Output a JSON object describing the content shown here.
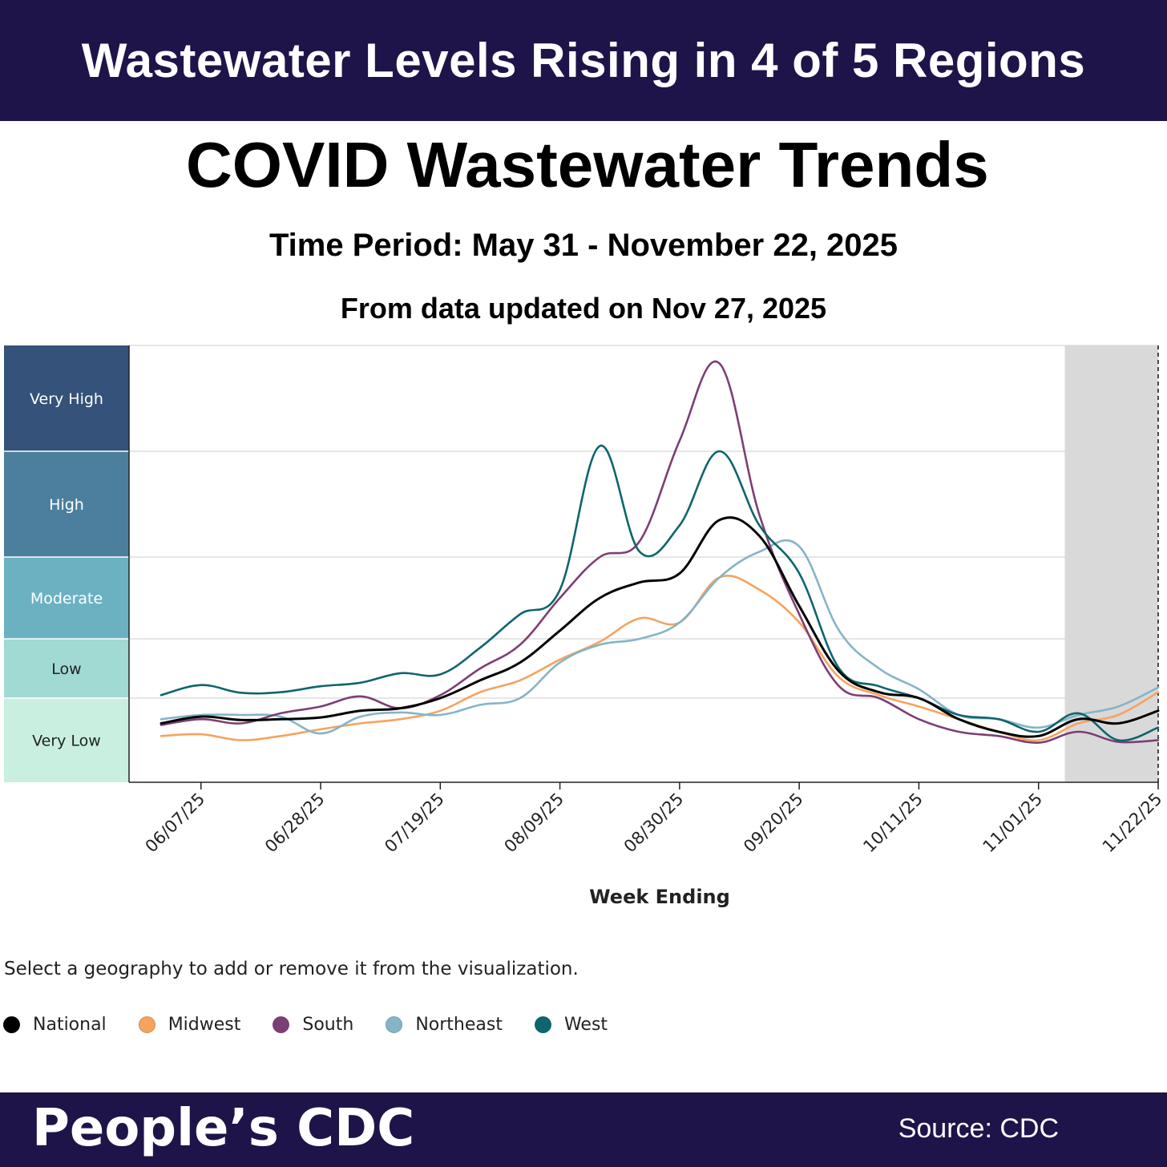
{
  "banner": {
    "headline": "Wastewater Levels Rising in 4 of 5 Regions"
  },
  "header": {
    "title": "COVID Wastewater Trends",
    "period": "Time Period: May 31 - November 22, 2025",
    "updated": "From data updated on Nov 27, 2025"
  },
  "instruction": "Select a geography to add or remove it from the visualization.",
  "footer": {
    "brand": "People’s CDC",
    "source": "Source: CDC"
  },
  "colors": {
    "National": "#000000",
    "Midwest": "#f5a35f",
    "South": "#7c3f74",
    "Northeast": "#85b4c7",
    "West": "#0f656d",
    "shade": "#d9d9d9"
  },
  "chart_data": {
    "type": "line",
    "xlabel": "Week Ending",
    "ylabel": "",
    "x_ticks": [
      "06/07/25",
      "06/28/25",
      "07/19/25",
      "08/09/25",
      "08/30/25",
      "09/20/25",
      "10/11/25",
      "11/01/25",
      "11/22/25"
    ],
    "x": [
      "05/31/25",
      "06/07/25",
      "06/14/25",
      "06/21/25",
      "06/28/25",
      "07/05/25",
      "07/12/25",
      "07/19/25",
      "07/26/25",
      "08/02/25",
      "08/09/25",
      "08/16/25",
      "08/23/25",
      "08/30/25",
      "09/06/25",
      "09/13/25",
      "09/20/25",
      "09/27/25",
      "10/04/25",
      "10/11/25",
      "10/18/25",
      "10/25/25",
      "11/01/25",
      "11/08/25",
      "11/15/25",
      "11/22/25"
    ],
    "levels": [
      {
        "label": "Very High",
        "range": [
          4,
          5
        ],
        "color": "#34527a"
      },
      {
        "label": "High",
        "range": [
          3,
          4
        ],
        "color": "#4c7f9e"
      },
      {
        "label": "Moderate",
        "range": [
          2,
          3
        ],
        "color": "#6bb1c1"
      },
      {
        "label": "Low",
        "range": [
          1,
          2
        ],
        "color": "#a1dad2"
      },
      {
        "label": "Very Low",
        "range": [
          0,
          1
        ],
        "color": "#c8efdf"
      }
    ],
    "series": [
      {
        "name": "National",
        "values": [
          0.7,
          0.78,
          0.74,
          0.75,
          0.77,
          0.85,
          0.88,
          1.0,
          1.3,
          1.6,
          2.1,
          2.5,
          2.69,
          2.8,
          3.35,
          3.2,
          2.4,
          1.45,
          1.1,
          1.0,
          0.75,
          0.6,
          0.55,
          0.75,
          0.7,
          0.85
        ]
      },
      {
        "name": "Midwest",
        "values": [
          0.55,
          0.57,
          0.5,
          0.55,
          0.63,
          0.7,
          0.75,
          0.85,
          1.1,
          1.3,
          1.65,
          1.95,
          2.25,
          2.2,
          2.75,
          2.6,
          2.2,
          1.35,
          1.05,
          0.9,
          0.75,
          0.6,
          0.5,
          0.7,
          0.8,
          1.1
        ]
      },
      {
        "name": "South",
        "values": [
          0.68,
          0.75,
          0.7,
          0.82,
          0.9,
          1.03,
          0.88,
          1.05,
          1.5,
          1.9,
          2.5,
          3.0,
          3.15,
          4.1,
          4.83,
          3.4,
          2.3,
          1.2,
          1.0,
          0.75,
          0.6,
          0.55,
          0.47,
          0.6,
          0.48,
          0.5
        ]
      },
      {
        "name": "Northeast",
        "values": [
          0.75,
          0.8,
          0.8,
          0.78,
          0.58,
          0.78,
          0.83,
          0.8,
          0.92,
          1.0,
          1.6,
          1.9,
          2.0,
          2.2,
          2.75,
          3.05,
          3.1,
          2.1,
          1.5,
          1.15,
          0.8,
          0.75,
          0.65,
          0.8,
          0.9,
          1.18
        ]
      },
      {
        "name": "West",
        "values": [
          1.05,
          1.22,
          1.09,
          1.1,
          1.2,
          1.26,
          1.42,
          1.4,
          1.85,
          2.3,
          2.6,
          4.05,
          3.05,
          3.3,
          4.0,
          3.3,
          2.8,
          1.5,
          1.2,
          1.0,
          0.8,
          0.75,
          0.6,
          0.82,
          0.5,
          0.65
        ]
      }
    ],
    "ylim": [
      0,
      5
    ],
    "grid": true,
    "shaded_region": {
      "from": "11/08/25",
      "to": "11/22/25"
    }
  }
}
